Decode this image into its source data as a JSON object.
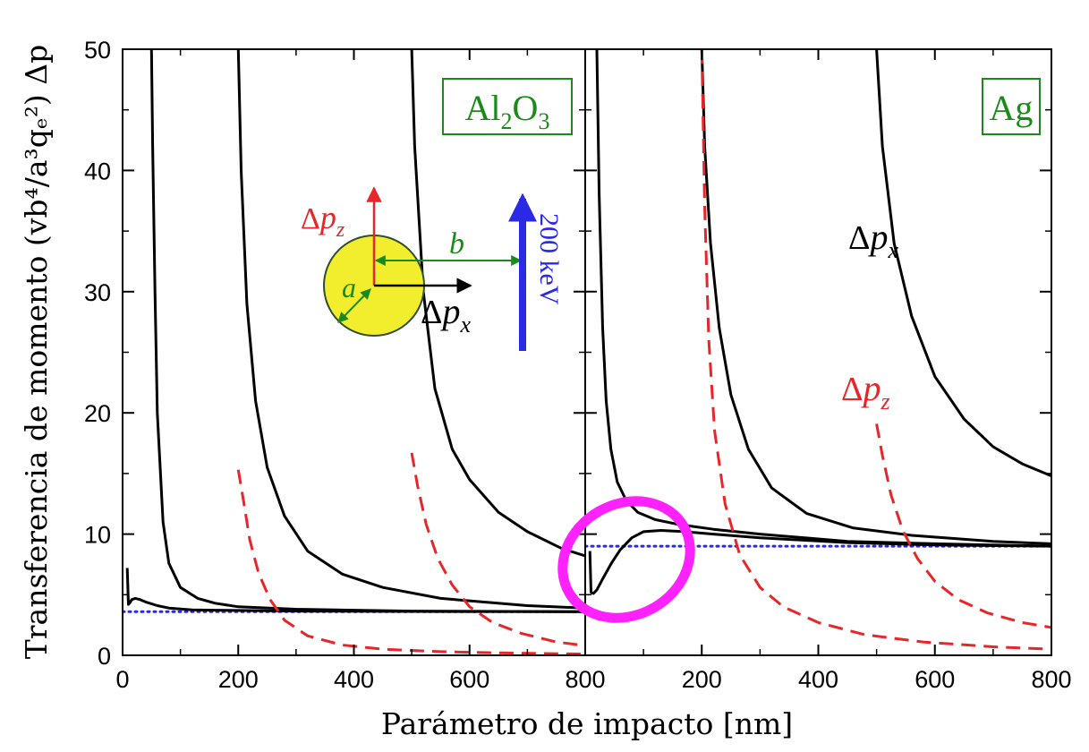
{
  "chart_data": {
    "type": "line",
    "ylabel": "Transferencia de momento (vb⁴/a³qₑ²) Δp",
    "xlabel": "Parámetro de impacto [nm]",
    "ylim": [
      0,
      50
    ],
    "yticks": [
      0,
      10,
      20,
      30,
      40,
      50
    ],
    "grid": false,
    "panels": [
      {
        "tag": "Al2O3",
        "tag_main": "Al",
        "tag_sub1": "2",
        "tag_main2": "O",
        "tag_sub2": "3",
        "xlim": [
          0,
          800
        ],
        "xticks": [
          0,
          200,
          400,
          600,
          800
        ],
        "reference_level": 3.6,
        "series": [
          {
            "kind": "px",
            "x": [
              8,
              10,
              12,
              16,
              22,
              30,
              40,
              60,
              80,
              120,
              160,
              200,
              300,
              500,
              800
            ],
            "y": [
              7.2,
              4.2,
              4.3,
              4.6,
              4.7,
              4.6,
              4.4,
              4.1,
              3.9,
              3.75,
              3.72,
              3.7,
              3.65,
              3.62,
              3.6
            ]
          },
          {
            "kind": "px",
            "x": [
              50,
              52,
              56,
              60,
              70,
              80,
              100,
              130,
              160,
              200,
              300,
              500,
              800
            ],
            "y": [
              50,
              42,
              30,
              20,
              11,
              7.6,
              5.6,
              4.7,
              4.3,
              4.0,
              3.8,
              3.65,
              3.6
            ]
          },
          {
            "kind": "px",
            "x": [
              200,
              205,
              215,
              230,
              250,
              280,
              320,
              380,
              450,
              550,
              700,
              800
            ],
            "y": [
              50,
              40,
              29,
              21,
              15.5,
              11.5,
              8.6,
              6.7,
              5.6,
              4.7,
              4.1,
              3.9
            ]
          },
          {
            "kind": "px",
            "x": [
              500,
              505,
              520,
              540,
              570,
              600,
              650,
              700,
              760,
              800
            ],
            "y": [
              50,
              42,
              30,
              22,
              17,
              14.5,
              11.8,
              10.2,
              8.8,
              8.2
            ]
          },
          {
            "kind": "pz",
            "x": [
              200,
              210,
              220,
              235,
              255,
              280,
              320,
              380,
              450,
              550,
              650,
              800
            ],
            "y": [
              15.3,
              12.5,
              9.5,
              6.8,
              4.6,
              2.9,
              1.6,
              0.85,
              0.5,
              0.3,
              0.2,
              0.1
            ]
          },
          {
            "kind": "pz",
            "x": [
              500,
              510,
              525,
              545,
              570,
              600,
              640,
              690,
              750,
              800
            ],
            "y": [
              16.7,
              14.0,
              10.8,
              8.0,
              5.8,
              4.0,
              2.7,
              1.8,
              1.1,
              0.8
            ]
          }
        ]
      },
      {
        "tag": "Ag",
        "xlim": [
          0,
          800
        ],
        "xticks": [
          200,
          400,
          600,
          800
        ],
        "reference_level": 9.0,
        "series": [
          {
            "kind": "px",
            "x": [
              8,
              10,
              14,
              20,
              30,
              45,
              60,
              80,
              100,
              130,
              170,
              220,
              300,
              450,
              600,
              800
            ],
            "y": [
              8.6,
              5.2,
              5.1,
              5.4,
              6.3,
              7.6,
              8.7,
              9.7,
              10.2,
              10.3,
              10.2,
              10.0,
              9.7,
              9.3,
              9.1,
              9.0
            ]
          },
          {
            "kind": "px",
            "x": [
              20,
              24,
              30,
              36,
              44,
              55,
              70,
              90,
              120,
              160,
              220,
              300,
              450,
              600,
              800
            ],
            "y": [
              50,
              38,
              27,
              21,
              17,
              14.3,
              12.8,
              11.8,
              11.2,
              10.8,
              10.4,
              10.0,
              9.4,
              9.2,
              9.0
            ]
          },
          {
            "kind": "px",
            "x": [
              200,
              205,
              215,
              230,
              250,
              280,
              320,
              380,
              460,
              560,
              700,
              800
            ],
            "y": [
              50,
              42,
              34,
              27,
              21.5,
              17,
              13.8,
              11.7,
              10.5,
              9.9,
              9.4,
              9.2
            ]
          },
          {
            "kind": "px",
            "x": [
              500,
              510,
              530,
              560,
              600,
              650,
              700,
              750,
              800
            ],
            "y": [
              50,
              42,
              34,
              28,
              23,
              19.5,
              17.2,
              15.8,
              14.8
            ]
          },
          {
            "kind": "pz",
            "x": [
              200,
              205,
              212,
              222,
              240,
              265,
              300,
              340,
              400,
              480,
              580,
              700,
              800
            ],
            "y": [
              50,
              37,
              26,
              18.5,
              12.5,
              8.3,
              5.6,
              4.0,
              2.7,
              1.7,
              1.1,
              0.7,
              0.5
            ]
          },
          {
            "kind": "pz",
            "x": [
              500,
              510,
              525,
              545,
              570,
              600,
              640,
              690,
              750,
              800
            ],
            "y": [
              19.1,
              16.5,
              13.2,
              10.3,
              8.0,
              6.1,
              4.6,
              3.5,
              2.7,
              2.3
            ]
          }
        ],
        "labels": {
          "px": {
            "delta": "Δ",
            "p": "p",
            "sub": "x"
          },
          "pz": {
            "delta": "Δ",
            "p": "p",
            "sub": "z"
          }
        }
      }
    ],
    "inset": {
      "a_label": "a",
      "b_label": "b",
      "px": {
        "delta": "Δ",
        "p": "p",
        "sub": "x"
      },
      "pz": {
        "delta": "Δ",
        "p": "p",
        "sub": "z"
      },
      "beam_label": "200 keV"
    },
    "colors": {
      "px": "#000000",
      "pz": "#e8262a",
      "reference": "#2a2ae6",
      "sphere_fill": "#f2ee2e",
      "tag": "#1a8a1a",
      "highlight": "#ff22ff"
    }
  }
}
